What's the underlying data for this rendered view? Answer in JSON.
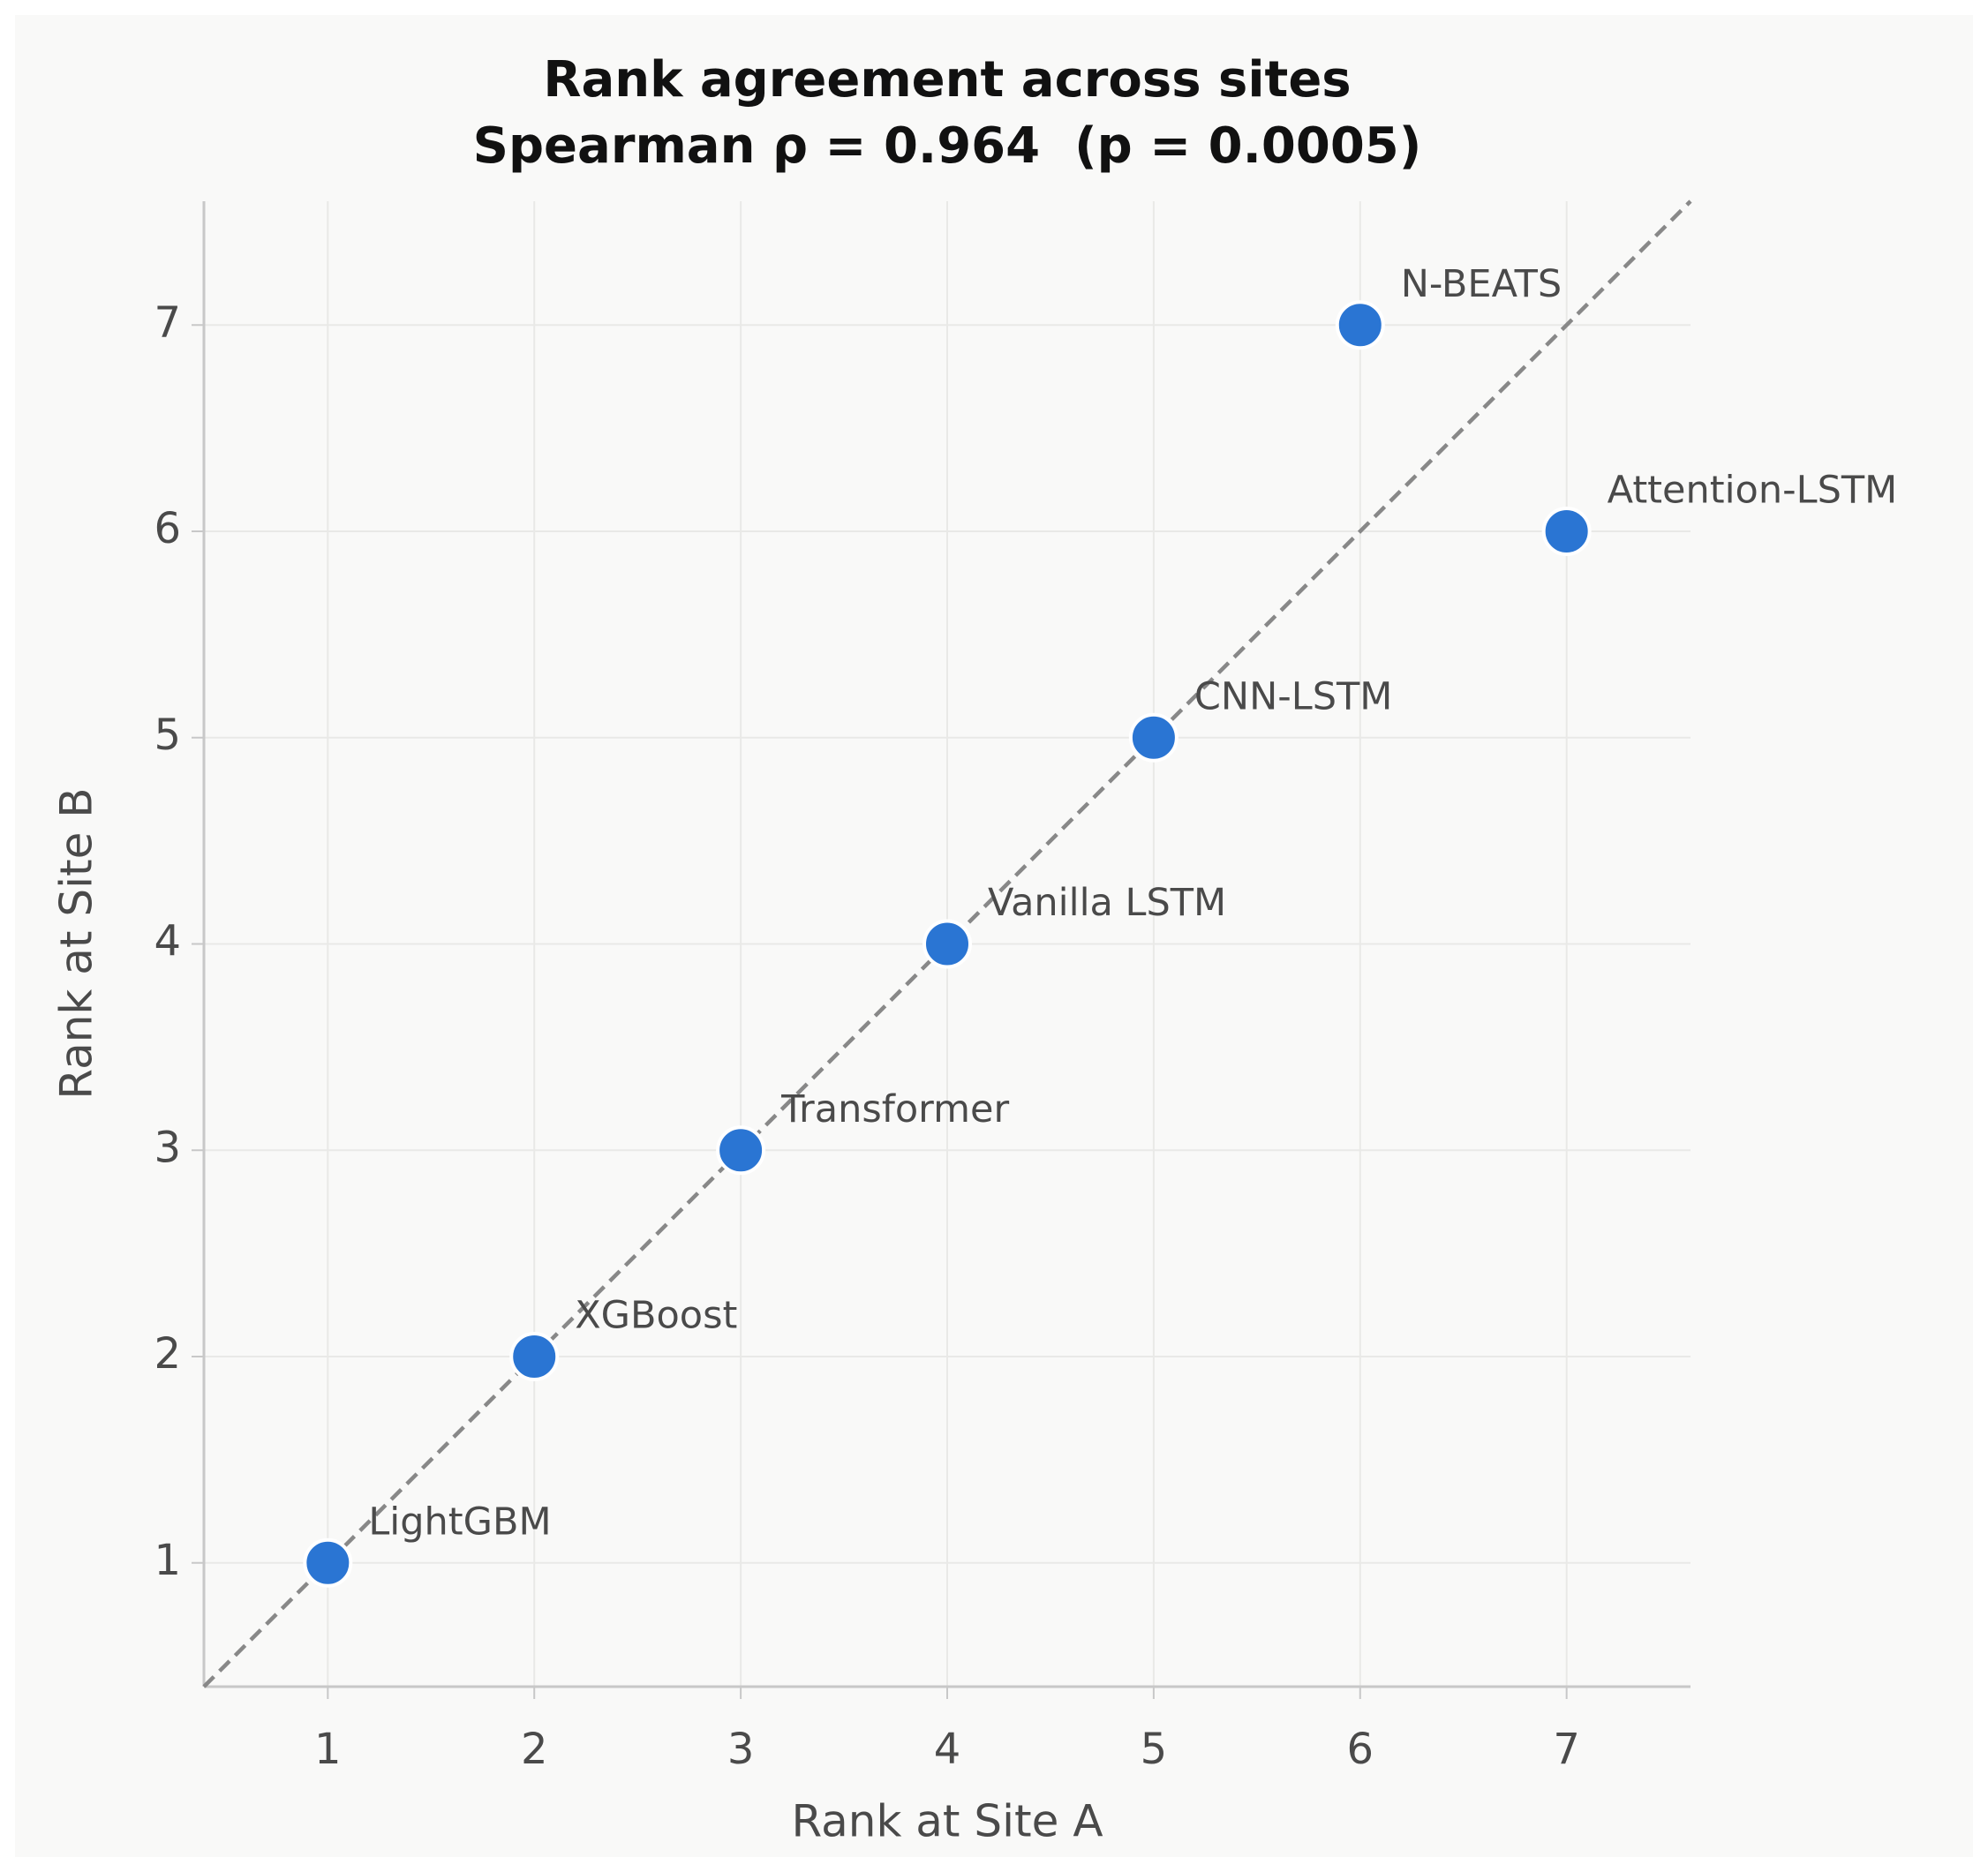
{
  "chart_data": {
    "type": "scatter",
    "title": "Rank agreement across sites",
    "subtitle": "Spearman ρ = 0.964  (p = 0.0005)",
    "x_label": "Rank at Site A",
    "y_label": "Rank at Site B",
    "x": [
      1,
      2,
      3,
      4,
      5,
      6,
      7
    ],
    "series": [
      {
        "color": "#2a75d3",
        "values": [
          1,
          2,
          3,
          4,
          5,
          7,
          6
        ]
      }
    ],
    "point_labels": [
      "LightGBM",
      "XGBoost",
      "Transformer",
      "Vanilla LSTM",
      "CNN-LSTM",
      "N-BEATS",
      "Attention-LSTM"
    ],
    "xlim": [
      0.4,
      7.6
    ],
    "ylim": [
      0.4,
      7.6
    ],
    "xticks": [
      1,
      2,
      3,
      4,
      5,
      6,
      7
    ],
    "yticks": [
      1,
      2,
      3,
      4,
      5,
      6,
      7
    ],
    "grid": true,
    "identity_line": true
  }
}
